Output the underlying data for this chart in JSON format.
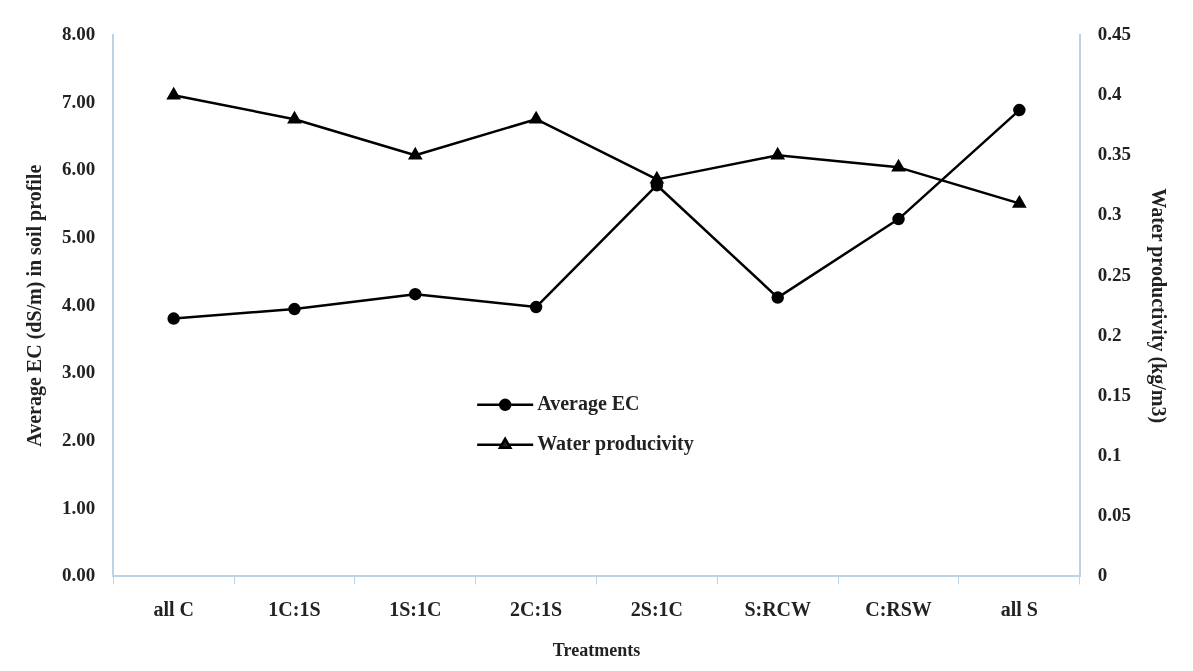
{
  "chart_data": {
    "type": "line",
    "xlabel": "Treatments",
    "ylabel": "Average EC (dS/m) in soil profile",
    "y2label": "Water productivity (kg/m3)",
    "categories": [
      "all C",
      "1C:1S",
      "1S:1C",
      "2C:1S",
      "2S:1C",
      "S:RCW",
      "C:RSW",
      "all S"
    ],
    "series": [
      {
        "name": "Average EC",
        "color": "#000000",
        "marker": "circle",
        "values": [
          3.81,
          3.95,
          4.17,
          3.98,
          5.78,
          4.12,
          5.28,
          6.89
        ]
      },
      {
        "name": "Water producivity",
        "color": "#000000",
        "marker": "triangle",
        "axis": "y2",
        "values": [
          0.4,
          0.38,
          0.35,
          0.38,
          0.33,
          0.35,
          0.34,
          0.31
        ]
      }
    ],
    "ylim": [
      0,
      8
    ],
    "yticks": [
      {
        "value": 0,
        "label": "0.00"
      },
      {
        "value": 1,
        "label": "1.00"
      },
      {
        "value": 2,
        "label": "2.00"
      },
      {
        "value": 3,
        "label": "3.00"
      },
      {
        "value": 4,
        "label": "4.00"
      },
      {
        "value": 5,
        "label": "5.00"
      },
      {
        "value": 6,
        "label": "6.00"
      },
      {
        "value": 7,
        "label": "7.00"
      },
      {
        "value": 8,
        "label": "8.00"
      }
    ],
    "y2lim": [
      0,
      0.45
    ],
    "y2ticks": [
      0,
      0.05,
      0.1,
      0.15,
      0.2,
      0.25,
      0.3,
      0.35,
      0.4,
      0.45
    ],
    "legend": "center",
    "grid": false
  }
}
